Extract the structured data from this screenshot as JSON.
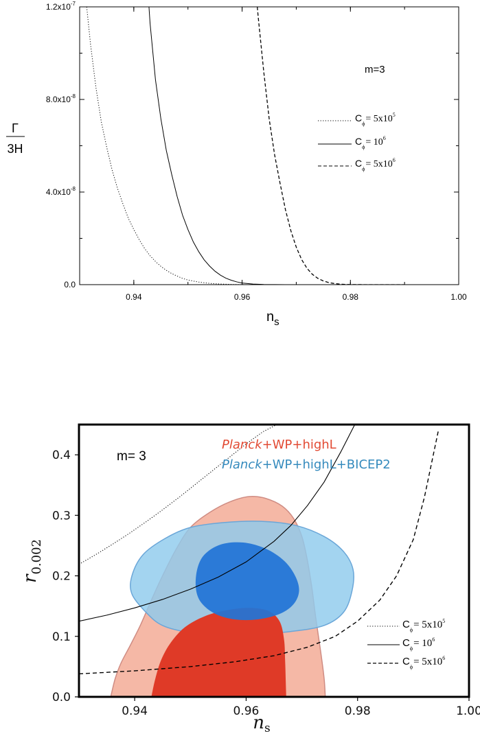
{
  "chart_data": [
    {
      "type": "line",
      "ylabel_num": "Γ",
      "ylabel_den": "3H",
      "xlabel_main": "n",
      "xlabel_sub": "s",
      "xlim": [
        0.93,
        1.0
      ],
      "ylim": [
        0,
        1.2e-07
      ],
      "xticks": [
        {
          "v": 0.94,
          "label": "0.94"
        },
        {
          "v": 0.96,
          "label": "0.96"
        },
        {
          "v": 0.98,
          "label": "0.98"
        },
        {
          "v": 1.0,
          "label": "1.00"
        }
      ],
      "yticks": [
        {
          "v": 0,
          "mant": "0.0",
          "exp": ""
        },
        {
          "v": 4e-08,
          "mant": "4.0x10",
          "exp": "-8"
        },
        {
          "v": 8e-08,
          "mant": "8.0x10",
          "exp": "-8"
        },
        {
          "v": 1.2e-07,
          "mant": "1.2x10",
          "exp": "-7"
        }
      ],
      "annotation": "m=3",
      "series": [
        {
          "style": "dotted",
          "legend_c": "C",
          "legend_sub": "ϕ",
          "legend_eq": "= 5x10",
          "legend_sup": "5",
          "x": [
            0.9313,
            0.932,
            0.933,
            0.934,
            0.935,
            0.936,
            0.937,
            0.938,
            0.939,
            0.94,
            0.941,
            0.942,
            0.943,
            0.944,
            0.945,
            0.946,
            0.947,
            0.948,
            0.949,
            0.95,
            0.952,
            0.954,
            0.956,
            0.958,
            0.961
          ],
          "y": [
            1.2e-07,
            1.04e-07,
            8.52e-08,
            7.03e-08,
            5.93e-08,
            4.95e-08,
            4.15e-08,
            3.48e-08,
            2.86e-08,
            2.38e-08,
            1.94e-08,
            1.56e-08,
            1.25e-08,
            1e-08,
            7.9e-09,
            6.2e-09,
            4.8e-09,
            3.7e-09,
            2.7e-09,
            2e-09,
            1.1e-09,
            5.5e-10,
            2.6e-10,
            1e-10,
            0
          ]
        },
        {
          "style": "solid",
          "legend_c": "C",
          "legend_sub": "ϕ",
          "legend_eq": "= 10",
          "legend_sup": "6",
          "x": [
            0.9428,
            0.943,
            0.944,
            0.945,
            0.946,
            0.947,
            0.948,
            0.949,
            0.95,
            0.951,
            0.952,
            0.953,
            0.954,
            0.955,
            0.956,
            0.957,
            0.958,
            0.959,
            0.96,
            0.962,
            0.964,
            0.966,
            0.968,
            0.972
          ],
          "y": [
            1.2e-07,
            1.13e-07,
            8.85e-08,
            7.16e-08,
            5.8e-08,
            4.76e-08,
            3.81e-08,
            3e-08,
            2.38e-08,
            1.84e-08,
            1.42e-08,
            1.07e-08,
            8e-09,
            5.8e-09,
            4.1e-09,
            2.8e-09,
            1.9e-09,
            1.2e-09,
            7e-10,
            2.5e-10,
            8e-11,
            2e-11,
            0,
            0
          ]
        },
        {
          "style": "dashed",
          "legend_c": "C",
          "legend_sub": "ϕ",
          "legend_eq": "= 5x10",
          "legend_sup": "6",
          "x": [
            0.9628,
            0.963,
            0.964,
            0.965,
            0.966,
            0.967,
            0.968,
            0.969,
            0.97,
            0.971,
            0.972,
            0.973,
            0.974,
            0.975,
            0.976,
            0.977,
            0.978,
            0.979,
            0.98,
            0.983,
            0.986,
            0.99
          ],
          "y": [
            1.2e-07,
            1.15e-07,
            9.19e-08,
            7.16e-08,
            5.61e-08,
            4.39e-08,
            3.24e-08,
            2.33e-08,
            1.62e-08,
            1.08e-08,
            7e-09,
            4.4e-09,
            2.7e-09,
            1.6e-09,
            9e-10,
            5e-10,
            2.5e-10,
            1e-10,
            4e-11,
            0,
            0,
            0
          ]
        }
      ]
    },
    {
      "type": "scatter",
      "ylabel_main": "r",
      "ylabel_sub": "0.002",
      "xlabel_main": "n",
      "xlabel_sub": "s",
      "xlim": [
        0.93,
        1.0
      ],
      "ylim": [
        0,
        0.45
      ],
      "xticks": [
        {
          "v": 0.94,
          "label": "0.94"
        },
        {
          "v": 0.96,
          "label": "0.96"
        },
        {
          "v": 0.98,
          "label": "0.98"
        },
        {
          "v": 1.0,
          "label": "1.00"
        }
      ],
      "yticks": [
        {
          "v": 0.0,
          "label": "0.0"
        },
        {
          "v": 0.1,
          "label": "0.1"
        },
        {
          "v": 0.2,
          "label": "0.2"
        },
        {
          "v": 0.3,
          "label": "0.3"
        },
        {
          "v": 0.4,
          "label": "0.4"
        }
      ],
      "annotation": "m= 3",
      "legend_red": {
        "italic": "Planck",
        "rest": "+WP+highL",
        "color": "#e24a33"
      },
      "legend_blue": {
        "italic": "Planck",
        "rest": "+WP+highL+BICEP2",
        "color": "#348abd"
      },
      "colors": {
        "red_outer": "#f5b8a6",
        "red_outer_edge": "#cf8c83",
        "red_inner": "#df3a27",
        "blue_outer": "#8fcbed",
        "blue_outer_edge": "#6aa6d8",
        "blue_inner": "#2274d6"
      },
      "contours": [
        {
          "name_key": "red_outer",
          "points": [
            [
              0.9357,
              0
            ],
            [
              0.9365,
              0.03
            ],
            [
              0.9375,
              0.055
            ],
            [
              0.9392,
              0.085
            ],
            [
              0.941,
              0.118
            ],
            [
              0.943,
              0.16
            ],
            [
              0.945,
              0.2
            ],
            [
              0.9475,
              0.245
            ],
            [
              0.95,
              0.28
            ],
            [
              0.9535,
              0.305
            ],
            [
              0.957,
              0.322
            ],
            [
              0.9605,
              0.331
            ],
            [
              0.9635,
              0.328
            ],
            [
              0.9665,
              0.315
            ],
            [
              0.9685,
              0.295
            ],
            [
              0.97,
              0.265
            ],
            [
              0.971,
              0.225
            ],
            [
              0.9718,
              0.18
            ],
            [
              0.9725,
              0.13
            ],
            [
              0.9733,
              0.08
            ],
            [
              0.974,
              0.03
            ],
            [
              0.9742,
              0
            ]
          ]
        },
        {
          "name_key": "blue_outer",
          "points": [
            [
              0.942,
              0.14
            ],
            [
              0.945,
              0.118
            ],
            [
              0.95,
              0.106
            ],
            [
              0.956,
              0.102
            ],
            [
              0.962,
              0.104
            ],
            [
              0.968,
              0.108
            ],
            [
              0.974,
              0.118
            ],
            [
              0.9775,
              0.14
            ],
            [
              0.979,
              0.175
            ],
            [
              0.9792,
              0.21
            ],
            [
              0.9775,
              0.24
            ],
            [
              0.974,
              0.265
            ],
            [
              0.969,
              0.283
            ],
            [
              0.963,
              0.29
            ],
            [
              0.956,
              0.288
            ],
            [
              0.95,
              0.28
            ],
            [
              0.9455,
              0.262
            ],
            [
              0.9415,
              0.235
            ],
            [
              0.9395,
              0.2
            ],
            [
              0.9395,
              0.17
            ]
          ]
        },
        {
          "name_key": "red_inner",
          "points": [
            [
              0.943,
              0
            ],
            [
              0.9437,
              0.03
            ],
            [
              0.9448,
              0.062
            ],
            [
              0.9465,
              0.09
            ],
            [
              0.949,
              0.115
            ],
            [
              0.9525,
              0.133
            ],
            [
              0.9565,
              0.143
            ],
            [
              0.9605,
              0.147
            ],
            [
              0.964,
              0.142
            ],
            [
              0.966,
              0.125
            ],
            [
              0.9668,
              0.095
            ],
            [
              0.967,
              0.06
            ],
            [
              0.9671,
              0.03
            ],
            [
              0.9672,
              0
            ]
          ]
        },
        {
          "name_key": "blue_inner",
          "points": [
            [
              0.951,
              0.178
            ],
            [
              0.952,
              0.155
            ],
            [
              0.9545,
              0.137
            ],
            [
              0.958,
              0.128
            ],
            [
              0.962,
              0.128
            ],
            [
              0.966,
              0.137
            ],
            [
              0.9685,
              0.153
            ],
            [
              0.9695,
              0.175
            ],
            [
              0.9688,
              0.2
            ],
            [
              0.9668,
              0.225
            ],
            [
              0.9635,
              0.245
            ],
            [
              0.9595,
              0.255
            ],
            [
              0.9555,
              0.252
            ],
            [
              0.9525,
              0.235
            ],
            [
              0.9512,
              0.21
            ]
          ]
        }
      ],
      "series": [
        {
          "style": "dotted",
          "legend_c": "C",
          "legend_sub": "ϕ",
          "legend_eq": "= 5x10",
          "legend_sup": "5",
          "x": [
            0.93,
            0.933,
            0.936,
            0.939,
            0.942,
            0.945,
            0.948,
            0.951,
            0.954,
            0.957,
            0.96,
            0.963,
            0.9655
          ],
          "y": [
            0.219,
            0.235,
            0.252,
            0.27,
            0.289,
            0.309,
            0.33,
            0.352,
            0.374,
            0.396,
            0.418,
            0.438,
            0.45
          ]
        },
        {
          "style": "solid",
          "legend_c": "C",
          "legend_sub": "ϕ",
          "legend_eq": "= 10",
          "legend_sup": "6",
          "x": [
            0.93,
            0.935,
            0.94,
            0.945,
            0.95,
            0.955,
            0.96,
            0.965,
            0.968,
            0.971,
            0.974,
            0.977,
            0.9795
          ],
          "y": [
            0.125,
            0.135,
            0.147,
            0.161,
            0.178,
            0.198,
            0.223,
            0.257,
            0.283,
            0.316,
            0.355,
            0.405,
            0.45
          ]
        },
        {
          "style": "dashed",
          "legend_c": "C",
          "legend_sub": "ϕ",
          "legend_eq": "= 5x10",
          "legend_sup": "6",
          "x": [
            0.93,
            0.94,
            0.95,
            0.958,
            0.965,
            0.971,
            0.976,
            0.98,
            0.984,
            0.987,
            0.99,
            0.992,
            0.9945
          ],
          "y": [
            0.038,
            0.043,
            0.05,
            0.058,
            0.068,
            0.082,
            0.1,
            0.125,
            0.16,
            0.2,
            0.26,
            0.33,
            0.44
          ]
        }
      ]
    }
  ]
}
